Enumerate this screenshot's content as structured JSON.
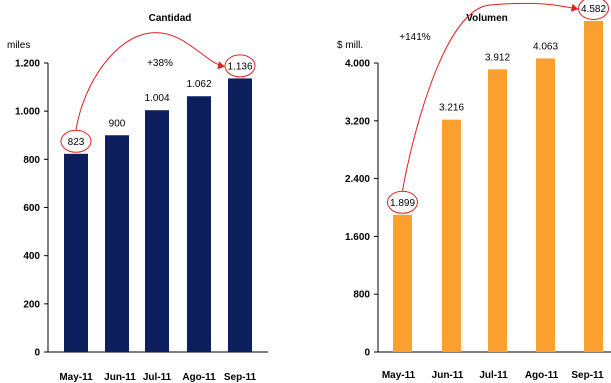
{
  "chart_data": [
    {
      "type": "bar",
      "title": "Cantidad",
      "unit_label": "miles",
      "categories": [
        "May-11",
        "Jun-11",
        "Jul-11",
        "Ago-11",
        "Sep-11"
      ],
      "values": [
        823,
        900,
        1004,
        1062,
        1136
      ],
      "data_labels": [
        "823",
        "900",
        "1.004",
        "1.062",
        "1.136"
      ],
      "ylim": [
        0,
        1200
      ],
      "yticks": [
        0,
        200,
        400,
        600,
        800,
        1000,
        1200
      ],
      "ytick_labels": [
        "0",
        "200",
        "400",
        "600",
        "800",
        "1.000",
        "1.200"
      ],
      "bar_color": "#0d1f5c",
      "growth_label": "+38%",
      "highlighted": [
        0,
        4
      ],
      "highlight_color": "#e02020",
      "grid": false
    },
    {
      "type": "bar",
      "title": "Volumen",
      "unit_label": "$ mill.",
      "categories": [
        "May-11",
        "Jun-11",
        "Jul-11",
        "Ago-11",
        "Sep-11"
      ],
      "values": [
        1899,
        3216,
        3912,
        4063,
        4582
      ],
      "data_labels": [
        "1.899",
        "3.216",
        "3.912",
        "4.063",
        "4.582"
      ],
      "ylim": [
        0,
        4000
      ],
      "yticks": [
        0,
        800,
        1600,
        2400,
        3200,
        4000
      ],
      "ytick_labels": [
        "0",
        "800",
        "1.600",
        "2.400",
        "3.200",
        "4.000"
      ],
      "bar_color": "#f9a030",
      "growth_label": "+141%",
      "highlighted": [
        0,
        4
      ],
      "highlight_color": "#e02020",
      "grid": false
    }
  ]
}
